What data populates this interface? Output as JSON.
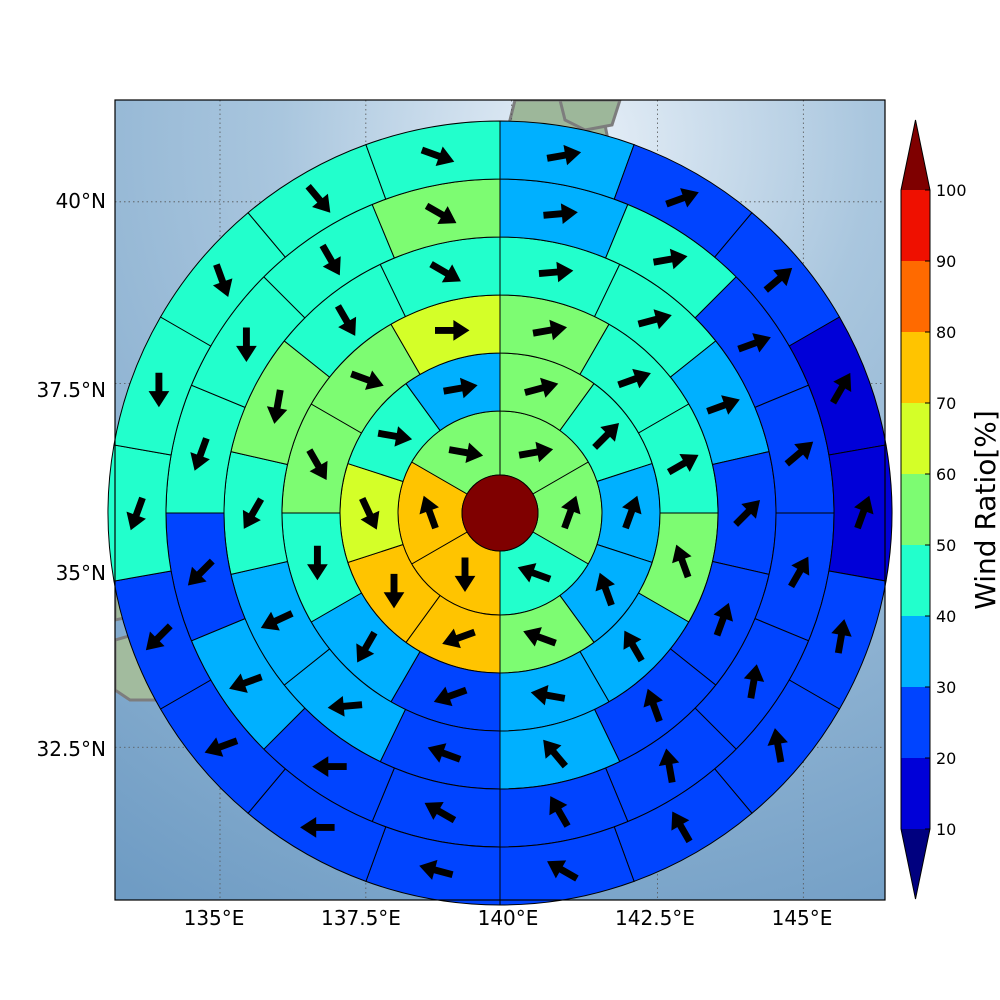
{
  "map": {
    "lon_ticks": [
      "135°E",
      "137.5°E",
      "140°E",
      "142.5°E",
      "145°E"
    ],
    "lat_ticks": [
      "40°N",
      "37.5°N",
      "35°N",
      "32.5°N"
    ],
    "lon_values": [
      135,
      137.5,
      140,
      142.5,
      145
    ],
    "lat_values": [
      40,
      37.5,
      35,
      32.5
    ],
    "lon_range": [
      133.2,
      146.4
    ],
    "lat_range": [
      30.4,
      41.4
    ],
    "center": {
      "lon": 139.9,
      "lat": 35.9
    },
    "grid": "dotted",
    "background": "relief map (ocean and Japan coastline)"
  },
  "polar_grid": {
    "rings": 6,
    "sector_counts": [
      6,
      10,
      12,
      14,
      16,
      18
    ],
    "center_value": 100,
    "ring_values": [
      [
        55,
        55,
        40,
        70,
        70,
        55
      ],
      [
        50,
        40,
        30,
        35,
        50,
        70,
        70,
        65,
        45,
        30
      ],
      [
        50,
        40,
        40,
        50,
        30,
        30,
        25,
        35,
        45,
        50,
        55,
        65
      ],
      [
        45,
        40,
        30,
        25,
        20,
        20,
        30,
        25,
        30,
        35,
        45,
        55,
        45,
        45
      ],
      [
        30,
        40,
        25,
        25,
        20,
        20,
        25,
        25,
        20,
        20,
        35,
        25,
        45,
        45,
        45,
        50
      ],
      [
        30,
        20,
        20,
        15,
        15,
        20,
        20,
        20,
        20,
        20,
        20,
        25,
        25,
        40,
        40,
        45,
        45,
        45
      ]
    ],
    "arrow_dirs": [
      [
        80,
        20,
        290,
        180,
        340,
        100
      ],
      [
        75,
        45,
        20,
        340,
        290,
        250,
        180,
        155,
        100,
        80
      ],
      [
        80,
        70,
        60,
        340,
        330,
        280,
        250,
        210,
        180,
        150,
        110,
        90
      ],
      [
        85,
        75,
        70,
        45,
        20,
        340,
        320,
        290,
        265,
        245,
        210,
        190,
        150,
        120
      ],
      [
        85,
        80,
        70,
        50,
        30,
        10,
        350,
        330,
        300,
        270,
        250,
        225,
        200,
        180,
        150,
        120
      ],
      [
        80,
        70,
        50,
        30,
        20,
        10,
        350,
        330,
        300,
        285,
        270,
        250,
        225,
        200,
        180,
        160,
        140,
        110
      ]
    ]
  },
  "colorbar": {
    "label": "Wind Ratio[%]",
    "ticks": [
      "10",
      "20",
      "30",
      "40",
      "50",
      "60",
      "70",
      "80",
      "90",
      "100"
    ],
    "bounds": [
      10,
      20,
      30,
      40,
      50,
      60,
      70,
      80,
      90,
      100
    ],
    "colors": [
      "#0000d8",
      "#0044ff",
      "#00b0ff",
      "#22ffcc",
      "#7dfc72",
      "#d4ff28",
      "#ffc400",
      "#ff6a00",
      "#ef1000"
    ],
    "under_color": "#00007f",
    "over_color": "#7f0000"
  }
}
